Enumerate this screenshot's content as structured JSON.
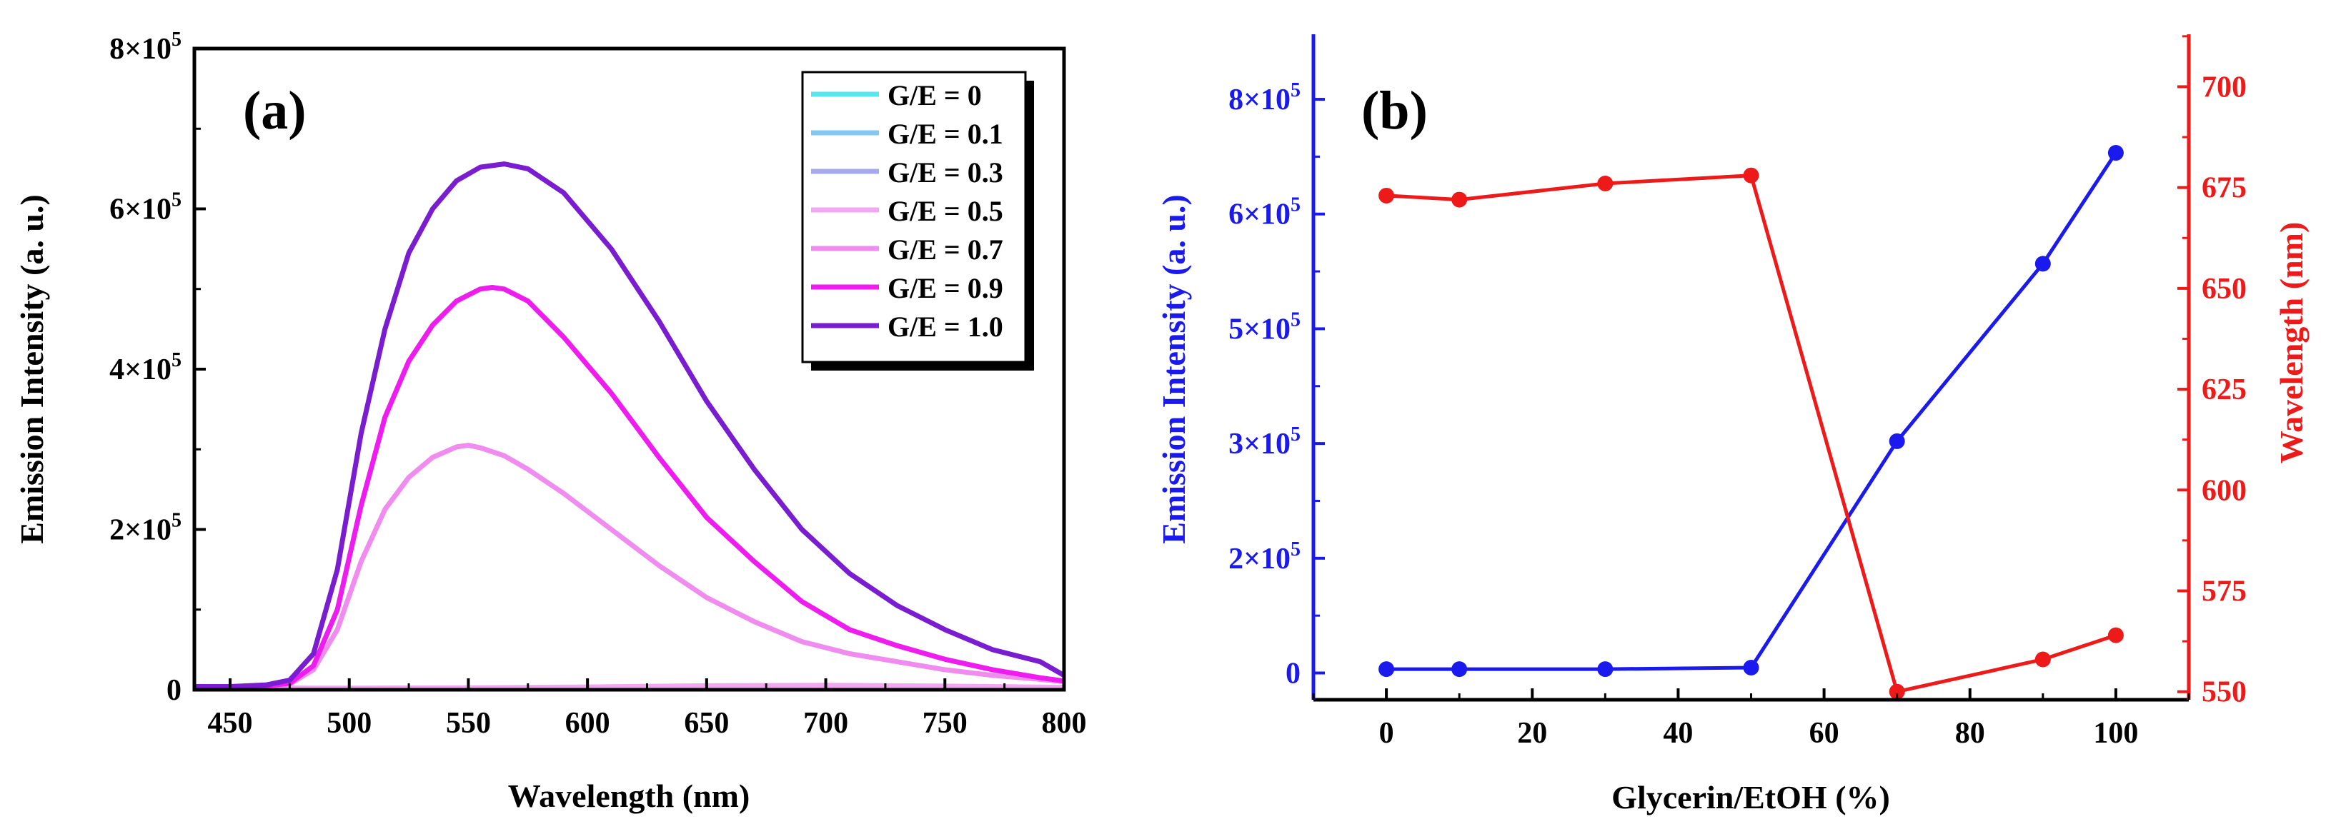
{
  "chart_data": [
    {
      "panel": "(a)",
      "type": "line",
      "title": "",
      "xlabel": "Wavelength (nm)",
      "ylabel": "Emission Intensity (a. u.)",
      "xlim": [
        435,
        800
      ],
      "ylim": [
        0,
        800000
      ],
      "xticks": [
        450,
        500,
        550,
        600,
        650,
        700,
        750,
        800
      ],
      "xtick_labels": [
        "450",
        "500",
        "550",
        "600",
        "650",
        "700",
        "750",
        "800"
      ],
      "yticks": [
        0,
        200000,
        400000,
        600000,
        800000
      ],
      "ytick_labels": [
        "0",
        "2×10",
        "4×10",
        "6×10",
        "8×10"
      ],
      "ytick_exponents": [
        "",
        "5",
        "5",
        "5",
        "5"
      ],
      "legend_position": "top-right",
      "series": [
        {
          "name": "G/E = 0",
          "color": "#55e6ee",
          "x": [
            435,
            450,
            470,
            500,
            550,
            600,
            650,
            700,
            750,
            800
          ],
          "values": [
            3000,
            2500,
            2000,
            1500,
            1500,
            1500,
            1500,
            1500,
            1500,
            1500
          ]
        },
        {
          "name": "G/E = 0.1",
          "color": "#82c8f2",
          "x": [
            435,
            450,
            470,
            500,
            550,
            600,
            650,
            700,
            750,
            800
          ],
          "values": [
            3000,
            2500,
            2000,
            1500,
            1500,
            1500,
            1500,
            1500,
            1500,
            1500
          ]
        },
        {
          "name": "G/E = 0.3",
          "color": "#a4a8ee",
          "x": [
            435,
            450,
            470,
            500,
            550,
            600,
            650,
            700,
            750,
            800
          ],
          "values": [
            3000,
            2500,
            2000,
            1500,
            1800,
            2500,
            4000,
            4500,
            3500,
            2500
          ]
        },
        {
          "name": "G/E = 0.5",
          "color": "#f0a8f0",
          "x": [
            435,
            450,
            470,
            500,
            550,
            600,
            650,
            700,
            750,
            800
          ],
          "values": [
            3000,
            2500,
            2000,
            2000,
            2500,
            3500,
            5000,
            5500,
            4500,
            3000
          ]
        },
        {
          "name": "G/E = 0.7",
          "color": "#f08cf0",
          "x": [
            435,
            450,
            465,
            475,
            485,
            495,
            505,
            515,
            525,
            535,
            545,
            550,
            555,
            565,
            575,
            590,
            610,
            630,
            650,
            670,
            690,
            710,
            730,
            750,
            770,
            790,
            800
          ],
          "values": [
            3000,
            3000,
            4000,
            7000,
            25000,
            75000,
            160000,
            225000,
            265000,
            290000,
            303000,
            305000,
            302000,
            292000,
            275000,
            245000,
            200000,
            155000,
            115000,
            85000,
            60000,
            45000,
            35000,
            25000,
            18000,
            13000,
            10000
          ]
        },
        {
          "name": "G/E = 0.9",
          "color": "#ee1cee",
          "x": [
            435,
            450,
            465,
            475,
            485,
            495,
            505,
            515,
            525,
            535,
            545,
            555,
            560,
            565,
            575,
            590,
            610,
            630,
            650,
            670,
            690,
            710,
            730,
            750,
            770,
            790,
            800
          ],
          "values": [
            3000,
            3000,
            5000,
            8000,
            30000,
            100000,
            230000,
            340000,
            410000,
            455000,
            485000,
            500000,
            502000,
            500000,
            485000,
            440000,
            370000,
            290000,
            215000,
            160000,
            110000,
            75000,
            55000,
            38000,
            25000,
            15000,
            11000
          ]
        },
        {
          "name": "G/E = 1.0",
          "color": "#7a1cd0",
          "x": [
            435,
            450,
            465,
            475,
            485,
            495,
            505,
            515,
            525,
            535,
            545,
            555,
            565,
            575,
            590,
            610,
            630,
            650,
            670,
            690,
            710,
            730,
            750,
            770,
            790,
            800
          ],
          "values": [
            4000,
            4000,
            6000,
            12000,
            45000,
            150000,
            320000,
            450000,
            545000,
            600000,
            635000,
            652000,
            656000,
            650000,
            620000,
            550000,
            460000,
            360000,
            275000,
            200000,
            145000,
            105000,
            75000,
            50000,
            35000,
            18000
          ]
        }
      ]
    },
    {
      "panel": "(b)",
      "type": "line",
      "xlabel": "Glycerin/EtOH (%)",
      "ylabel_left": "Emission Intensity (a. u.)",
      "ylabel_right": "Wavelength (nm)",
      "xlim": [
        -10,
        110
      ],
      "xticks": [
        0,
        20,
        40,
        60,
        80,
        100
      ],
      "xtick_labels": [
        "0",
        "20",
        "40",
        "60",
        "80",
        "100"
      ],
      "ylim_left": [
        -35000,
        835000
      ],
      "yticks_left": [
        0,
        150000,
        300000,
        450000,
        600000,
        750000
      ],
      "ytick_labels_left": [
        "0",
        "2×10",
        "3×10",
        "5×10",
        "6×10",
        "8×10"
      ],
      "ytick_exponents_left": [
        "",
        "5",
        "5",
        "5",
        "5",
        "5"
      ],
      "ylim_right": [
        548,
        713
      ],
      "yticks_right": [
        550,
        575,
        600,
        625,
        650,
        675,
        700
      ],
      "ytick_labels_right": [
        "550",
        "575",
        "600",
        "625",
        "650",
        "675",
        "700"
      ],
      "left_axis_color": "#1a1aee",
      "right_axis_color": "#ee1a1a",
      "series": [
        {
          "name": "Emission Intensity",
          "axis": "left",
          "color": "#1a1aee",
          "x": [
            0,
            10,
            30,
            50,
            70,
            90,
            100
          ],
          "values": [
            5000,
            5000,
            5000,
            7000,
            303000,
            535000,
            680000
          ]
        },
        {
          "name": "Wavelength",
          "axis": "right",
          "color": "#ee1a1a",
          "x": [
            0,
            10,
            30,
            50,
            70,
            90,
            100
          ],
          "values": [
            673,
            672,
            676,
            678,
            550,
            558,
            564
          ]
        }
      ]
    }
  ]
}
